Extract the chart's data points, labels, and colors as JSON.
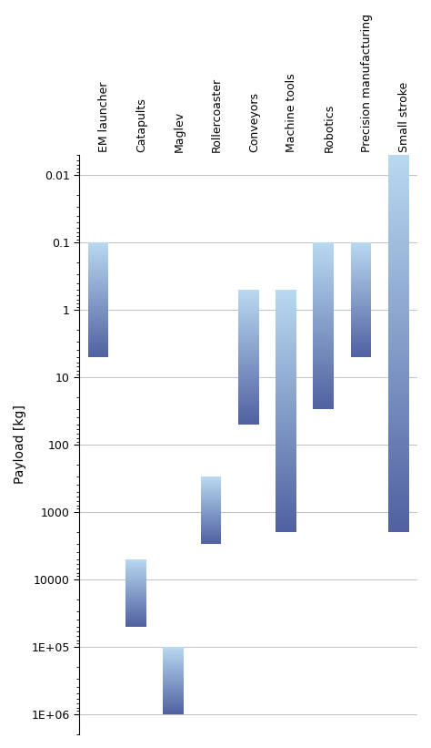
{
  "categories": [
    "EM launcher",
    "Catapults",
    "Maglev",
    "Rollercoaster",
    "Conveyors",
    "Machine tools",
    "Robotics",
    "Precision manufacturing",
    "Small stroke"
  ],
  "bar_min": [
    0.1,
    5000,
    100000,
    300,
    0.5,
    0.5,
    0.1,
    0.1,
    0.005
  ],
  "bar_max": [
    5,
    50000,
    1000000,
    3000,
    50,
    2000,
    30,
    5,
    2000
  ],
  "ymin": 0.005,
  "ymax": 2000000,
  "color_light": "#b8d9f0",
  "color_dark": "#5060a0",
  "ylabel": "Payload [kg]",
  "bar_width": 0.55,
  "figsize": [
    4.74,
    8.21
  ],
  "dpi": 100,
  "yticks": [
    0.01,
    0.1,
    1,
    10,
    100,
    1000,
    10000,
    100000,
    1000000
  ],
  "ytick_labels": [
    "0.01",
    "0.1",
    "1",
    "10",
    "100",
    "1000",
    "10000",
    "1E+05",
    "1E+06"
  ]
}
